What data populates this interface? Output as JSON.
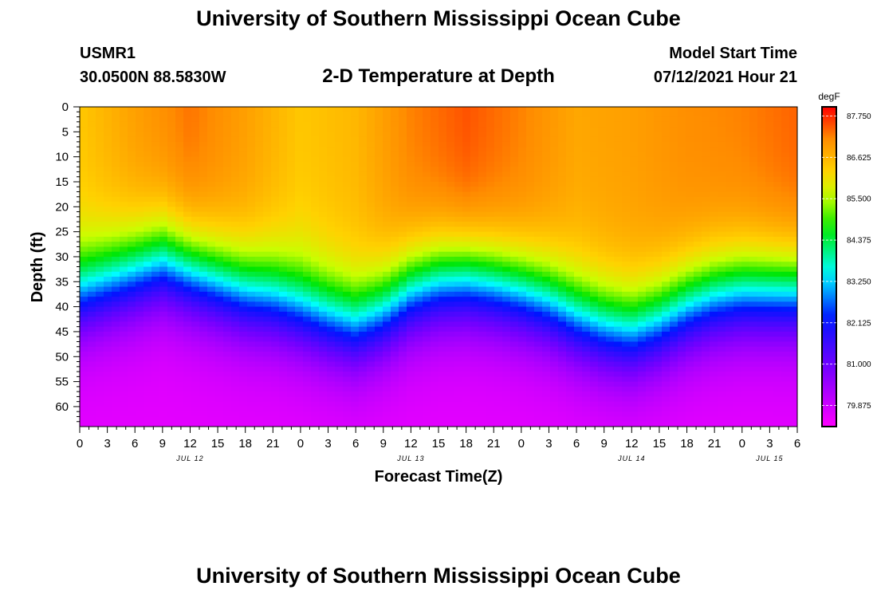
{
  "header": {
    "title": "University of Southern Mississippi Ocean Cube",
    "station_id": "USMR1",
    "station_location": "30.0500N  88.5830W",
    "plot_title": "2-D Temperature at Depth",
    "model_label": "Model Start Time",
    "model_time": "07/12/2021 Hour 21"
  },
  "footer": {
    "title": "University of Southern Mississippi Ocean Cube"
  },
  "chart_data": {
    "type": "heatmap",
    "title": "2-D Temperature at Depth",
    "xlabel": "Forecast Time(Z)",
    "ylabel": "Depth (ft)",
    "x_tick_labels": [
      "0",
      "3",
      "6",
      "9",
      "12",
      "15",
      "18",
      "21",
      "0",
      "3",
      "6",
      "9",
      "12",
      "15",
      "18",
      "21",
      "0",
      "3",
      "6",
      "9",
      "12",
      "15",
      "18",
      "21",
      "0",
      "3",
      "6"
    ],
    "x_range_hours": [
      0,
      78
    ],
    "date_labels": [
      {
        "label": "JUL 12",
        "hour": 12
      },
      {
        "label": "JUL 13",
        "hour": 36
      },
      {
        "label": "JUL 14",
        "hour": 60
      },
      {
        "label": "JUL 15",
        "hour": 75
      }
    ],
    "y_tick_labels": [
      "0",
      "5",
      "10",
      "15",
      "20",
      "25",
      "30",
      "35",
      "40",
      "45",
      "50",
      "55",
      "60"
    ],
    "y_range_ft": [
      0,
      64
    ],
    "colorbar": {
      "unit": "degF",
      "tick_labels": [
        "87.750",
        "86.625",
        "85.500",
        "84.375",
        "83.250",
        "82.125",
        "81.000",
        "79.875"
      ],
      "range_degF": [
        79.3,
        88.0
      ]
    },
    "thermocline_depth_ft": {
      "hours": [
        0,
        3,
        6,
        9,
        12,
        15,
        18,
        21,
        24,
        27,
        30,
        33,
        36,
        39,
        42,
        45,
        48,
        51,
        54,
        57,
        60,
        63,
        66,
        69,
        72,
        75,
        78
      ],
      "depth": [
        37,
        35,
        33,
        31,
        33,
        35,
        37,
        38,
        40,
        42,
        43.5,
        41,
        37,
        35,
        34.5,
        35.5,
        37,
        39,
        42,
        44,
        45,
        43,
        40,
        38,
        37,
        37,
        37
      ]
    },
    "surface_temperature_degF": {
      "hours": [
        0,
        6,
        12,
        18,
        24,
        30,
        36,
        42,
        48,
        54,
        60,
        66,
        72,
        78
      ],
      "values": [
        86.4,
        86.9,
        87.3,
        86.9,
        86.4,
        86.6,
        87.2,
        87.5,
        87.2,
        86.8,
        86.9,
        87.1,
        87.2,
        87.4
      ]
    },
    "bottom_temperature_degF": 79.6
  }
}
